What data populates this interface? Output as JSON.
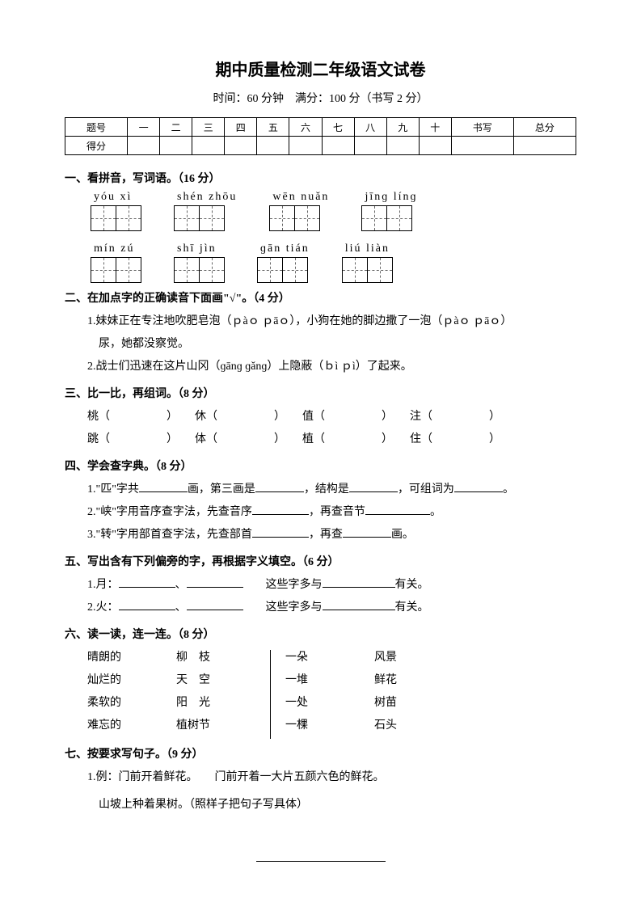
{
  "title": "期中质量检测二年级语文试卷",
  "subtitle": "时间：60 分钟　满分：100 分（书写 2 分）",
  "score": {
    "hdr": [
      "题号",
      "一",
      "二",
      "三",
      "四",
      "五",
      "六",
      "七",
      "八",
      "九",
      "十",
      "书写",
      "总分"
    ],
    "row": "得分"
  },
  "q1": {
    "head": "一、看拼音，写词语。（16 分）",
    "r1": [
      "yóu xì",
      "shén zhōu",
      "wēn nuǎn",
      "jīnɡ línɡ"
    ],
    "r2": [
      "mín zú",
      "shī jìn",
      "ɡān tián",
      "liú liàn"
    ]
  },
  "q2": {
    "head": "二、在加点字的正确读音下面画\"√\"。（4 分）",
    "l1": "1.妹妹正在专注地吹肥皂泡（ｐàｏ ｐāｏ），小狗在她的脚边撒了一泡（ｐàｏ ｐāｏ）",
    "l1b": "尿，她都没察觉。",
    "l2": "2.战士们迅速在这片山冈（ɡānɡ ɡǎnɡ）上隐蔽（ｂì ｐì）了起来。"
  },
  "q3": {
    "head": "三、比一比，再组词。（8 分）",
    "r1": [
      "桃（",
      "休（",
      "值（",
      "注（"
    ],
    "r2": [
      "跳（",
      "体（",
      "植（",
      "住（"
    ]
  },
  "q4": {
    "head": "四、学会查字典。（8 分）",
    "l1a": "1.\"匹\"字共",
    "l1b": "画，第三画是",
    "l1c": "，结构是",
    "l1d": "，可组词为",
    "l1e": "。",
    "l2a": "2.\"峡\"字用音序查字法，先查音序",
    "l2b": "，再查音节",
    "l2c": "。",
    "l3a": "3.\"转\"字用部首查字法，先查部首",
    "l3b": "，再查",
    "l3c": "画。"
  },
  "q5": {
    "head": "五、写出含有下列偏旁的字，再根据字义填空。（6 分）",
    "l1a": "1.月：",
    "mid": "、",
    "tail": "这些字多与",
    "end": "有关。",
    "l2a": "2.火："
  },
  "q6": {
    "head": "六、读一读，连一连。（8 分）",
    "c1": [
      "晴朗的",
      "灿烂的",
      "柔软的",
      "难忘的"
    ],
    "c2": [
      "柳　枝",
      "天　空",
      "阳　光",
      "植树节"
    ],
    "c3": [
      "一朵",
      "一堆",
      "一处",
      "一棵"
    ],
    "c4": [
      "风景",
      "鲜花",
      "树苗",
      "石头"
    ]
  },
  "q7": {
    "head": "七、按要求写句子。（9 分）",
    "l1": "1.例：门前开着鲜花。　　门前开着一大片五颜六色的鲜花。",
    "l2": "山坡上种着果树。（照样子把句子写具体）"
  }
}
